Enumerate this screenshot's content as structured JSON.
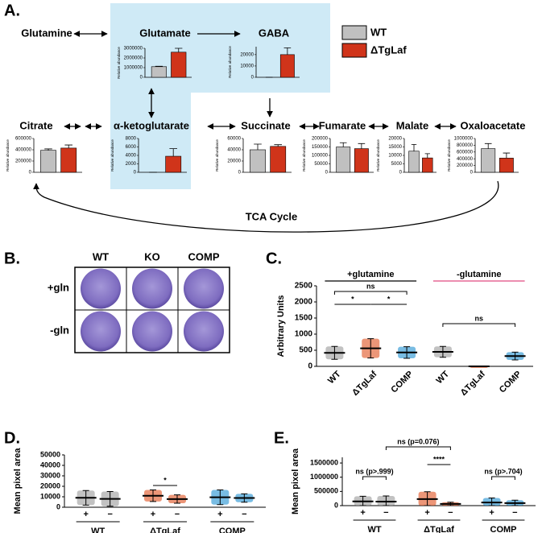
{
  "figure": {
    "panel_a": {
      "letter": "A.",
      "glutamine": "Glutamine",
      "cycle_label": "TCA Cycle"
    },
    "panel_b": {
      "letter": "B.",
      "columns": [
        "WT",
        "KO",
        "COMP"
      ],
      "rows": [
        "+gln",
        "-gln"
      ]
    },
    "panel_c": {
      "letter": "C."
    },
    "panel_d": {
      "letter": "D."
    },
    "panel_e": {
      "letter": "E."
    }
  },
  "legend": [
    {
      "name": "WT",
      "color": "#c0c0c0"
    },
    {
      "name": "ΔTgLaf",
      "color": "#d0341a"
    }
  ],
  "chart_data": [
    {
      "type": "bar",
      "title": "Glutamate",
      "y_label": "Relative abundance",
      "values": [
        1100000,
        2600000
      ],
      "errors": [
        40000,
        400000
      ],
      "ylim": [
        0,
        3000000
      ],
      "yticks": [
        0,
        1000000,
        2000000,
        3000000
      ]
    },
    {
      "type": "bar",
      "title": "GABA",
      "y_label": "Relative abundance",
      "values": [
        0,
        20000
      ],
      "errors": [
        0,
        6000
      ],
      "ylim": [
        0,
        27000
      ],
      "yticks": [
        0,
        10000,
        20000
      ]
    },
    {
      "type": "bar",
      "title": "α-ketoglutarate",
      "y_label": "Relative abundance",
      "values": [
        0,
        3800
      ],
      "errors": [
        0,
        1800
      ],
      "ylim": [
        0,
        8000
      ],
      "yticks": [
        0,
        2000,
        4000,
        6000,
        8000
      ]
    },
    {
      "type": "bar",
      "title": "Citrate",
      "y_label": "Relative abundance",
      "values": [
        390000,
        430000
      ],
      "errors": [
        25000,
        55000
      ],
      "ylim": [
        0,
        600000
      ],
      "yticks": [
        0,
        200000,
        400000,
        600000
      ]
    },
    {
      "type": "bar",
      "title": "Succinate",
      "y_label": "Relative abundance",
      "values": [
        40000,
        46000
      ],
      "errors": [
        10000,
        3000
      ],
      "ylim": [
        0,
        60000
      ],
      "yticks": [
        0,
        20000,
        40000,
        60000
      ]
    },
    {
      "type": "bar",
      "title": "Fumarate",
      "y_label": "Relative abundance",
      "values": [
        150000,
        140000
      ],
      "errors": [
        25000,
        30000
      ],
      "ylim": [
        0,
        200000
      ],
      "yticks": [
        0,
        50000,
        100000,
        150000,
        200000
      ]
    },
    {
      "type": "bar",
      "title": "Malate",
      "y_label": "Relative abundance",
      "values": [
        12500,
        8500
      ],
      "errors": [
        4000,
        2500
      ],
      "ylim": [
        0,
        20000
      ],
      "yticks": [
        0,
        5000,
        10000,
        15000,
        20000
      ]
    },
    {
      "type": "bar",
      "title": "Oxaloacetate",
      "y_label": "Relative abundance",
      "values": [
        700000,
        420000
      ],
      "errors": [
        150000,
        150000
      ],
      "ylim": [
        0,
        1000000
      ],
      "yticks": [
        0,
        200000,
        400000,
        600000,
        800000,
        1000000
      ]
    },
    {
      "type": "dot",
      "y_label": "Arbitrary Units",
      "categories": [
        "WT",
        "ΔTgLaf",
        "COMP",
        "WT",
        "ΔTgLaf",
        "COMP"
      ],
      "colors": [
        "#999999",
        "#e0501e",
        "#1e8fd0",
        "#999999",
        "#e0501e",
        "#1e8fd0"
      ],
      "values": [
        420,
        560,
        430,
        450,
        0,
        320
      ],
      "errors": [
        200,
        300,
        180,
        170,
        0,
        120
      ],
      "ylim": [
        0,
        2500
      ],
      "yticks": [
        0,
        500,
        1000,
        1500,
        2000,
        2500
      ],
      "sections": [
        {
          "label": "+glutamine",
          "color": "#000000"
        },
        {
          "label": "-glutamine",
          "color": "#e04a80"
        }
      ],
      "annotations": [
        "ns",
        "*",
        "*",
        "ns"
      ]
    },
    {
      "type": "dot",
      "y_label": "Mean pixel area",
      "categories": [
        "+",
        "−",
        "+",
        "−",
        "+",
        "−"
      ],
      "groups": [
        "WT",
        "ΔTgLaf",
        "COMP"
      ],
      "colors": [
        "#999999",
        "#999999",
        "#e0501e",
        "#e0501e",
        "#1e8fd0",
        "#1e8fd0"
      ],
      "values": [
        9000,
        8000,
        11000,
        7800,
        9500,
        8800
      ],
      "errors": [
        7000,
        7000,
        5500,
        4000,
        7000,
        4000
      ],
      "ylim": [
        0,
        50000
      ],
      "yticks": [
        0,
        10000,
        20000,
        30000,
        40000,
        50000
      ],
      "annotations": [
        "*"
      ]
    },
    {
      "type": "dot",
      "y_label": "Mean pixel area",
      "categories": [
        "+",
        "−",
        "+",
        "−",
        "+",
        "−"
      ],
      "groups": [
        "WT",
        "ΔTgLaf",
        "COMP"
      ],
      "colors": [
        "#999999",
        "#999999",
        "#e0501e",
        "#e0501e",
        "#1e8fd0",
        "#1e8fd0"
      ],
      "values": [
        150000,
        140000,
        230000,
        60000,
        110000,
        90000
      ],
      "errors": [
        180000,
        200000,
        260000,
        60000,
        160000,
        100000
      ],
      "ylim": [
        0,
        1700000
      ],
      "yticks": [
        0,
        500000,
        1000000,
        1500000
      ],
      "annotations": [
        "ns (p>.999)",
        "ns (p=0.076)",
        "****",
        "ns (p>.704)"
      ]
    }
  ]
}
